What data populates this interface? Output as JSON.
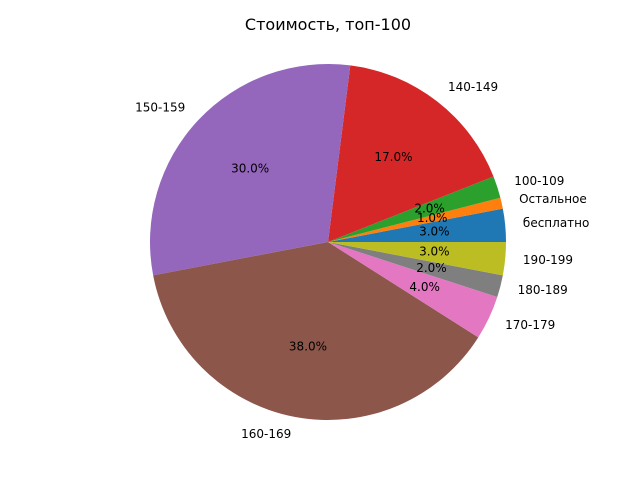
{
  "chart_data": {
    "type": "pie",
    "title": "Стоимость, топ-100",
    "start_angle_deg": 0,
    "direction": "counterclockwise",
    "slices": [
      {
        "label": "бесплатно",
        "value": 3.0,
        "pct_text": "3.0%",
        "color": "#1f77b4"
      },
      {
        "label": "Остальное",
        "value": 1.0,
        "pct_text": "1.0%",
        "color": "#ff7f0e"
      },
      {
        "label": "100-109",
        "value": 2.0,
        "pct_text": "2.0%",
        "color": "#2ca02c"
      },
      {
        "label": "140-149",
        "value": 17.0,
        "pct_text": "17.0%",
        "color": "#d62728"
      },
      {
        "label": "150-159",
        "value": 30.0,
        "pct_text": "30.0%",
        "color": "#9467bd"
      },
      {
        "label": "160-169",
        "value": 38.0,
        "pct_text": "38.0%",
        "color": "#8c564b"
      },
      {
        "label": "170-179",
        "value": 4.0,
        "pct_text": "4.0%",
        "color": "#e377c2"
      },
      {
        "label": "180-189",
        "value": 2.0,
        "pct_text": "2.0%",
        "color": "#7f7f7f"
      },
      {
        "label": "190-199",
        "value": 3.0,
        "pct_text": "3.0%",
        "color": "#bcbd22"
      }
    ]
  }
}
